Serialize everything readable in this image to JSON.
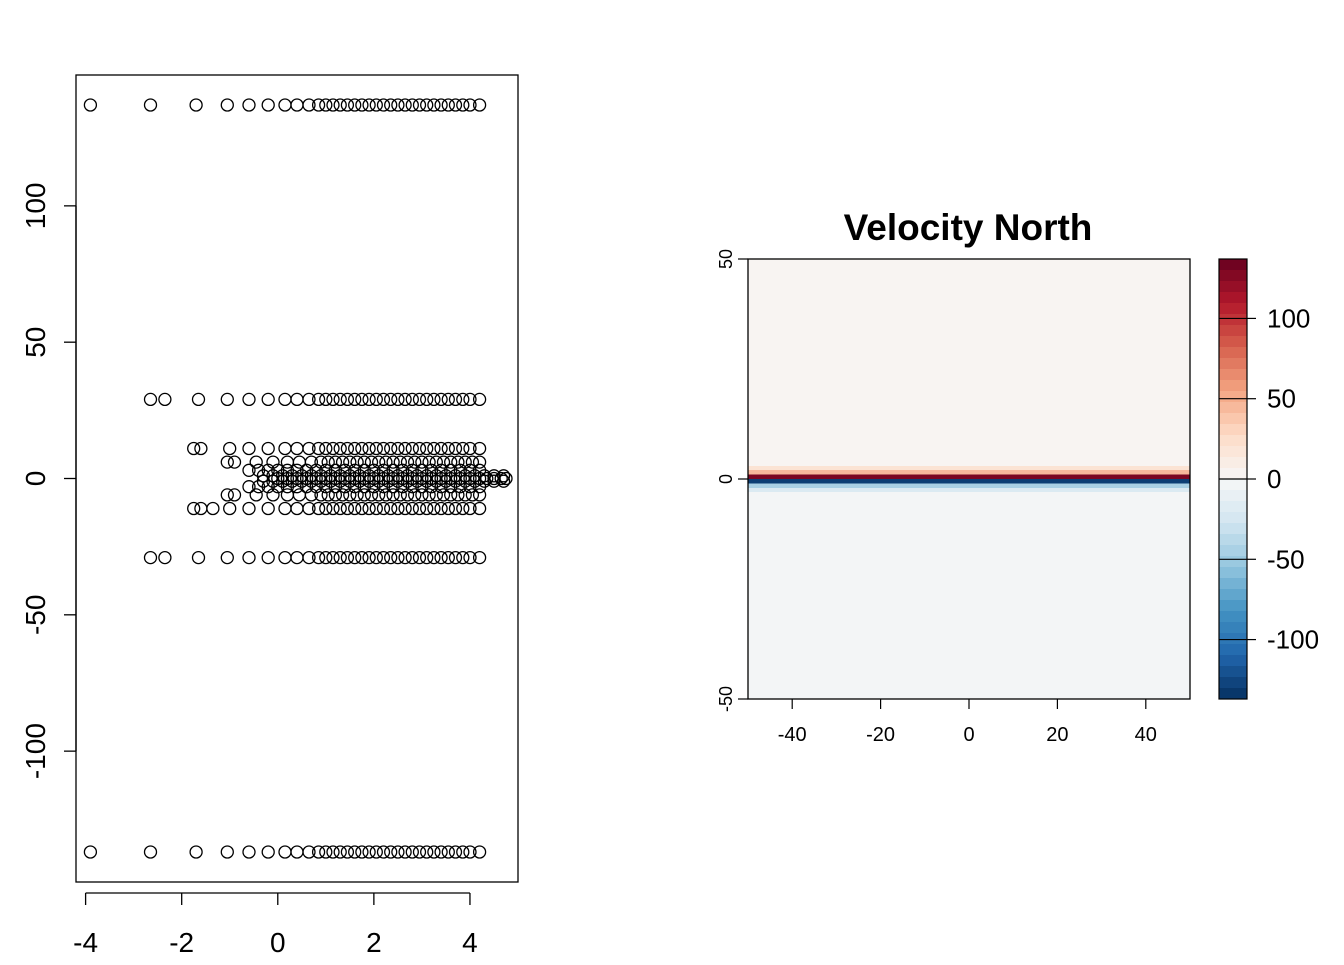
{
  "chart_data": [
    {
      "type": "scatter",
      "title": "",
      "xlabel": "",
      "ylabel": "",
      "xlim": [
        -4.2,
        5.0
      ],
      "ylim": [
        -148,
        148
      ],
      "x_ticks": [
        "-4",
        "-2",
        "0",
        "2",
        "4"
      ],
      "y_ticks": [
        "-100",
        "-50",
        "0",
        "50",
        "100"
      ],
      "marker": "open-circle",
      "series": [
        {
          "y": 137,
          "x": [
            -3.9,
            -2.65,
            -1.7,
            -1.05,
            -0.6,
            -0.2,
            0.15,
            0.4,
            0.65,
            0.85,
            1.0,
            1.15,
            1.3,
            1.45,
            1.6,
            1.75,
            1.9,
            2.05,
            2.2,
            2.35,
            2.5,
            2.65,
            2.8,
            2.95,
            3.1,
            3.25,
            3.4,
            3.55,
            3.7,
            3.85,
            4.0,
            4.2
          ]
        },
        {
          "y": 29,
          "x": [
            -2.65,
            -2.35,
            -1.65,
            -1.05,
            -0.6,
            -0.2,
            0.15,
            0.4,
            0.65,
            0.85,
            1.0,
            1.15,
            1.3,
            1.45,
            1.6,
            1.75,
            1.9,
            2.05,
            2.2,
            2.35,
            2.5,
            2.65,
            2.8,
            2.95,
            3.1,
            3.25,
            3.4,
            3.55,
            3.7,
            3.85,
            4.0,
            4.2
          ]
        },
        {
          "y": 11,
          "x": [
            -1.75,
            -1.6,
            -1.0,
            -0.6,
            -0.2,
            0.15,
            0.4,
            0.65,
            0.85,
            1.0,
            1.15,
            1.3,
            1.45,
            1.6,
            1.75,
            1.9,
            2.05,
            2.2,
            2.35,
            2.5,
            2.65,
            2.8,
            2.95,
            3.1,
            3.25,
            3.4,
            3.55,
            3.7,
            3.85,
            4.0,
            4.2
          ]
        },
        {
          "y": 6,
          "x": [
            -1.05,
            -0.9,
            -0.45,
            -0.1,
            0.2,
            0.45,
            0.7,
            0.9,
            1.05,
            1.2,
            1.35,
            1.5,
            1.65,
            1.8,
            1.95,
            2.1,
            2.25,
            2.4,
            2.55,
            2.7,
            2.85,
            3.0,
            3.15,
            3.3,
            3.45,
            3.6,
            3.75,
            3.9,
            4.05,
            4.2
          ]
        },
        {
          "y": 3,
          "x": [
            -0.6,
            -0.4,
            -0.2,
            0.0,
            0.2,
            0.4,
            0.6,
            0.8,
            1.0,
            1.2,
            1.4,
            1.6,
            1.8,
            2.0,
            2.2,
            2.4,
            2.6,
            2.8,
            3.0,
            3.2,
            3.4,
            3.6,
            3.8,
            4.0,
            4.2
          ]
        },
        {
          "y": 1,
          "x": [
            -0.3,
            -0.1,
            0.1,
            0.3,
            0.5,
            0.7,
            0.9,
            1.1,
            1.3,
            1.5,
            1.7,
            1.9,
            2.1,
            2.3,
            2.5,
            2.7,
            2.9,
            3.1,
            3.3,
            3.5,
            3.7,
            3.9,
            4.1,
            4.3,
            4.5,
            4.7
          ]
        },
        {
          "y": 0,
          "x": [
            0.0,
            0.2,
            0.4,
            0.6,
            0.8,
            1.0,
            1.2,
            1.4,
            1.6,
            1.8,
            2.0,
            2.2,
            2.4,
            2.6,
            2.8,
            3.0,
            3.2,
            3.4,
            3.6,
            3.8,
            4.0,
            4.2,
            4.35,
            4.5,
            4.65,
            4.75
          ]
        },
        {
          "y": -1,
          "x": [
            -0.3,
            -0.1,
            0.1,
            0.3,
            0.5,
            0.7,
            0.9,
            1.1,
            1.3,
            1.5,
            1.7,
            1.9,
            2.1,
            2.3,
            2.5,
            2.7,
            2.9,
            3.1,
            3.3,
            3.5,
            3.7,
            3.9,
            4.1,
            4.3,
            4.5,
            4.7
          ]
        },
        {
          "y": -3,
          "x": [
            -0.6,
            -0.4,
            -0.2,
            0.0,
            0.2,
            0.4,
            0.6,
            0.8,
            1.0,
            1.2,
            1.4,
            1.6,
            1.8,
            2.0,
            2.2,
            2.4,
            2.6,
            2.8,
            3.0,
            3.2,
            3.4,
            3.6,
            3.8,
            4.0,
            4.2
          ]
        },
        {
          "y": -6,
          "x": [
            -1.05,
            -0.9,
            -0.45,
            -0.1,
            0.2,
            0.45,
            0.7,
            0.9,
            1.05,
            1.2,
            1.35,
            1.5,
            1.65,
            1.8,
            1.95,
            2.1,
            2.25,
            2.4,
            2.55,
            2.7,
            2.85,
            3.0,
            3.15,
            3.3,
            3.45,
            3.6,
            3.75,
            3.9,
            4.05,
            4.2
          ]
        },
        {
          "y": -11,
          "x": [
            -1.75,
            -1.6,
            -1.35,
            -1.0,
            -0.6,
            -0.2,
            0.15,
            0.4,
            0.65,
            0.85,
            1.0,
            1.15,
            1.3,
            1.45,
            1.6,
            1.75,
            1.9,
            2.05,
            2.2,
            2.35,
            2.5,
            2.65,
            2.8,
            2.95,
            3.1,
            3.25,
            3.4,
            3.55,
            3.7,
            3.85,
            4.0,
            4.2
          ]
        },
        {
          "y": -29,
          "x": [
            -2.65,
            -2.35,
            -1.65,
            -1.05,
            -0.6,
            -0.2,
            0.15,
            0.4,
            0.65,
            0.85,
            1.0,
            1.15,
            1.3,
            1.45,
            1.6,
            1.75,
            1.9,
            2.05,
            2.2,
            2.35,
            2.5,
            2.65,
            2.8,
            2.95,
            3.1,
            3.25,
            3.4,
            3.55,
            3.7,
            3.85,
            4.0,
            4.2
          ]
        },
        {
          "y": -137,
          "x": [
            -3.9,
            -2.65,
            -1.7,
            -1.05,
            -0.6,
            -0.2,
            0.15,
            0.4,
            0.65,
            0.85,
            1.0,
            1.15,
            1.3,
            1.45,
            1.6,
            1.75,
            1.9,
            2.05,
            2.2,
            2.35,
            2.5,
            2.65,
            2.8,
            2.95,
            3.1,
            3.25,
            3.4,
            3.55,
            3.7,
            3.85,
            4.0,
            4.2
          ]
        }
      ]
    },
    {
      "type": "heatmap",
      "title": "Velocity North",
      "xlabel": "",
      "ylabel": "",
      "xlim": [
        -50,
        50
      ],
      "ylim": [
        -50,
        50
      ],
      "x_ticks": [
        "-40",
        "-20",
        "0",
        "20",
        "40"
      ],
      "y_ticks": [
        "-50",
        "0",
        "50"
      ],
      "rows": [
        {
          "y0": 3,
          "y1": 50,
          "value": 3
        },
        {
          "y0": 2,
          "y1": 3,
          "value": 20
        },
        {
          "y0": 1,
          "y1": 2,
          "value": 45
        },
        {
          "y0": 0,
          "y1": 1,
          "value": 130
        },
        {
          "y0": -1,
          "y1": 0,
          "value": -130
        },
        {
          "y0": -2,
          "y1": -1,
          "value": -45
        },
        {
          "y0": -3,
          "y1": -2,
          "value": -20
        },
        {
          "y0": -50,
          "y1": -3,
          "value": -3
        }
      ],
      "colorbar": {
        "range": [
          -137,
          137
        ],
        "ticks": [
          "100",
          "50",
          "0",
          "-50",
          "-100"
        ],
        "tick_values": [
          100,
          50,
          0,
          -50,
          -100
        ],
        "palette": [
          "#053061",
          "#2166ac",
          "#4393c3",
          "#92c5de",
          "#d1e5f0",
          "#f7f7f7",
          "#fddbc7",
          "#f4a582",
          "#d6604d",
          "#b2182b",
          "#67001f"
        ]
      }
    }
  ]
}
